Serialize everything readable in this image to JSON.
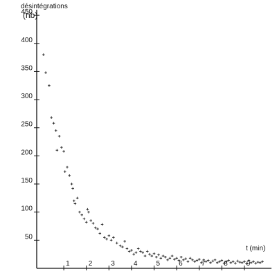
{
  "chart_data": {
    "type": "scatter",
    "title": "",
    "ylabel": "désintégrations",
    "yunit": "(nb)",
    "xlabel": "t (min)",
    "x_ticks": [
      "1",
      "2",
      "3",
      "4",
      "5",
      "6",
      "7",
      "8",
      "9"
    ],
    "y_ticks": [
      "50",
      "100",
      "150",
      "200",
      "250",
      "300",
      "350",
      "400",
      "450"
    ],
    "xlim": [
      -0.2,
      10.2
    ],
    "ylim": [
      0,
      460
    ],
    "grid": false,
    "legend": "none",
    "series": [
      {
        "points": [
          [
            0.1,
            380
          ],
          [
            0.2,
            348
          ],
          [
            0.35,
            325
          ],
          [
            0.45,
            268
          ],
          [
            0.55,
            258
          ],
          [
            0.65,
            245
          ],
          [
            0.7,
            210
          ],
          [
            0.8,
            235
          ],
          [
            0.9,
            215
          ],
          [
            1.0,
            208
          ],
          [
            1.05,
            172
          ],
          [
            1.15,
            180
          ],
          [
            1.25,
            165
          ],
          [
            1.35,
            150
          ],
          [
            1.4,
            142
          ],
          [
            1.45,
            120
          ],
          [
            1.5,
            115
          ],
          [
            1.6,
            125
          ],
          [
            1.7,
            100
          ],
          [
            1.8,
            95
          ],
          [
            1.9,
            88
          ],
          [
            2.0,
            82
          ],
          [
            2.05,
            105
          ],
          [
            2.1,
            100
          ],
          [
            2.2,
            85
          ],
          [
            2.3,
            80
          ],
          [
            2.4,
            72
          ],
          [
            2.5,
            70
          ],
          [
            2.6,
            62
          ],
          [
            2.7,
            78
          ],
          [
            2.8,
            55
          ],
          [
            2.9,
            52
          ],
          [
            3.0,
            58
          ],
          [
            3.1,
            50
          ],
          [
            3.2,
            55
          ],
          [
            3.35,
            45
          ],
          [
            3.5,
            40
          ],
          [
            3.6,
            38
          ],
          [
            3.7,
            48
          ],
          [
            3.8,
            35
          ],
          [
            3.9,
            30
          ],
          [
            4.0,
            32
          ],
          [
            4.1,
            25
          ],
          [
            4.2,
            28
          ],
          [
            4.3,
            35
          ],
          [
            4.4,
            30
          ],
          [
            4.5,
            28
          ],
          [
            4.6,
            22
          ],
          [
            4.7,
            30
          ],
          [
            4.8,
            25
          ],
          [
            4.9,
            22
          ],
          [
            5.0,
            26
          ],
          [
            5.1,
            20
          ],
          [
            5.2,
            24
          ],
          [
            5.3,
            18
          ],
          [
            5.4,
            22
          ],
          [
            5.5,
            20
          ],
          [
            5.6,
            15
          ],
          [
            5.7,
            18
          ],
          [
            5.8,
            22
          ],
          [
            5.9,
            16
          ],
          [
            6.0,
            18
          ],
          [
            6.1,
            14
          ],
          [
            6.2,
            20
          ],
          [
            6.3,
            15
          ],
          [
            6.4,
            17
          ],
          [
            6.5,
            12
          ],
          [
            6.6,
            18
          ],
          [
            6.7,
            15
          ],
          [
            6.8,
            12
          ],
          [
            6.9,
            14
          ],
          [
            7.0,
            16
          ],
          [
            7.1,
            10
          ],
          [
            7.2,
            15
          ],
          [
            7.3,
            12
          ],
          [
            7.4,
            14
          ],
          [
            7.5,
            10
          ],
          [
            7.6,
            13
          ],
          [
            7.7,
            15
          ],
          [
            7.8,
            10
          ],
          [
            7.9,
            12
          ],
          [
            8.0,
            14
          ],
          [
            8.1,
            9
          ],
          [
            8.2,
            12
          ],
          [
            8.3,
            14
          ],
          [
            8.4,
            10
          ],
          [
            8.5,
            12
          ],
          [
            8.6,
            9
          ],
          [
            8.7,
            13
          ],
          [
            8.8,
            11
          ],
          [
            8.9,
            10
          ],
          [
            9.0,
            12
          ],
          [
            9.1,
            8
          ],
          [
            9.2,
            14
          ],
          [
            9.3,
            10
          ],
          [
            9.4,
            12
          ],
          [
            9.5,
            9
          ],
          [
            9.6,
            11
          ],
          [
            9.7,
            10
          ],
          [
            9.8,
            12
          ]
        ]
      }
    ]
  }
}
